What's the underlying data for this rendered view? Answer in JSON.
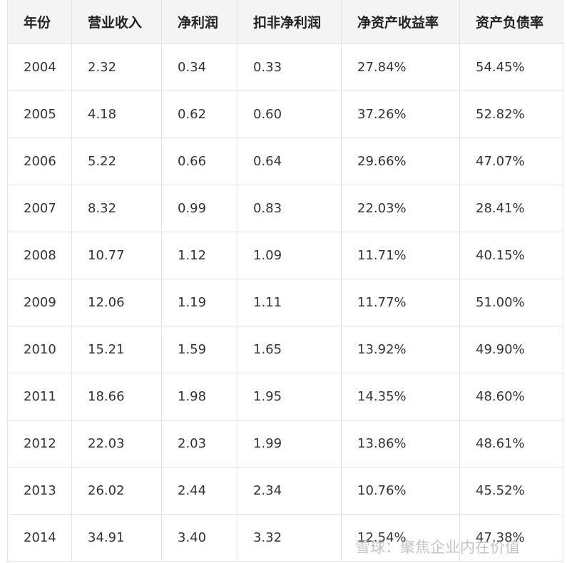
{
  "table": {
    "header": [
      "年份",
      "营业收入",
      "净利润",
      "扣非净利润",
      "净资产收益率",
      "资产负债率"
    ],
    "rows": [
      [
        "2004",
        "2.32",
        "0.34",
        "0.33",
        "27.84%",
        "54.45%"
      ],
      [
        "2005",
        "4.18",
        "0.62",
        "0.60",
        "37.26%",
        "52.82%"
      ],
      [
        "2006",
        "5.22",
        "0.66",
        "0.64",
        "29.66%",
        "47.07%"
      ],
      [
        "2007",
        "8.32",
        "0.99",
        "0.83",
        "22.03%",
        "28.41%"
      ],
      [
        "2008",
        "10.77",
        "1.12",
        "1.09",
        "11.71%",
        "40.15%"
      ],
      [
        "2009",
        "12.06",
        "1.19",
        "1.11",
        "11.77%",
        "51.00%"
      ],
      [
        "2010",
        "15.21",
        "1.59",
        "1.65",
        "13.92%",
        "49.90%"
      ],
      [
        "2011",
        "18.66",
        "1.98",
        "1.95",
        "14.35%",
        "48.60%"
      ],
      [
        "2012",
        "22.03",
        "2.03",
        "1.99",
        "13.86%",
        "48.61%"
      ],
      [
        "2013",
        "26.02",
        "2.44",
        "2.34",
        "10.76%",
        "45.52%"
      ],
      [
        "2014",
        "34.91",
        "3.40",
        "3.32",
        "12.54%",
        "47.38%"
      ]
    ]
  },
  "watermark": "雪球：聚焦企业内在价值"
}
